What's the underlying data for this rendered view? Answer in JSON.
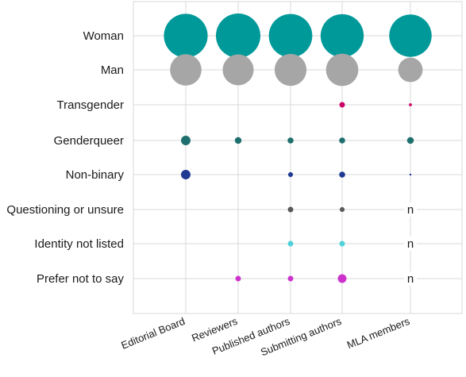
{
  "chart_data": {
    "type": "bubble",
    "title": "",
    "xlabel": "",
    "ylabel": "",
    "grid": true,
    "legend": "none",
    "categories": [
      "Editorial Board",
      "Reviewers",
      "Published authors",
      "Submitting authors",
      "MLA members"
    ],
    "rows": [
      {
        "label": "Woman",
        "color": "#009999",
        "values": [
          64,
          66,
          63,
          62,
          60
        ]
      },
      {
        "label": "Man",
        "color": "#a6a6a6",
        "values": [
          33,
          32,
          34,
          35,
          20
        ]
      },
      {
        "label": "Transgender",
        "color": "#cc0066",
        "values": [
          0,
          0,
          0,
          1,
          0.3
        ]
      },
      {
        "label": "Genderqueer",
        "color": "#1f6f6f",
        "values": [
          3,
          1.5,
          1.2,
          1.2,
          1.5
        ]
      },
      {
        "label": "Non-binary",
        "color": "#1f3a93",
        "values": [
          3,
          0,
          0.8,
          1.2,
          0.1
        ]
      },
      {
        "label": "Questioning or unsure",
        "color": "#595959",
        "values": [
          0,
          0,
          1,
          0.8,
          null
        ]
      },
      {
        "label": "Identity not listed",
        "color": "#4fd1d9",
        "values": [
          0,
          0,
          1,
          1,
          null
        ]
      },
      {
        "label": "Prefer not to say",
        "color": "#cc33cc",
        "values": [
          0,
          1,
          1,
          2.5,
          null
        ]
      }
    ],
    "not_available_label": "n"
  }
}
